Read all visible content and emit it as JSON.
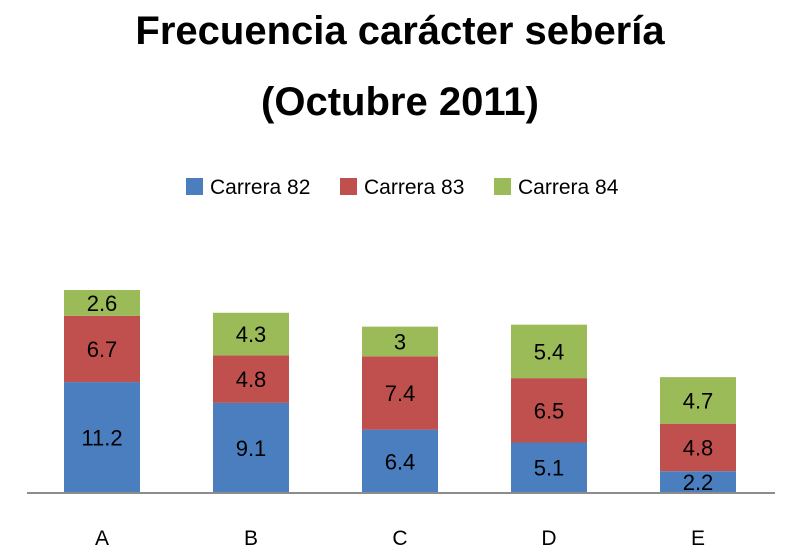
{
  "chart_data": {
    "type": "bar",
    "stacked": true,
    "title": "Frecuencia carácter sebería",
    "subtitle": "(Octubre 2011)",
    "categories": [
      "A",
      "B",
      "C",
      "D",
      "E"
    ],
    "series": [
      {
        "name": "Carrera 82",
        "color": "#4a7ebf",
        "values": [
          11.2,
          9.1,
          6.4,
          5.1,
          2.2
        ]
      },
      {
        "name": "Carrera 83",
        "color": "#c0504d",
        "values": [
          6.7,
          4.8,
          7.4,
          6.5,
          4.8
        ]
      },
      {
        "name": "Carrera 84",
        "color": "#9bbb59",
        "values": [
          2.6,
          4.3,
          3,
          5.4,
          4.7
        ]
      }
    ],
    "legend": "top",
    "grid": false,
    "ylim": [
      0,
      20.5
    ]
  }
}
